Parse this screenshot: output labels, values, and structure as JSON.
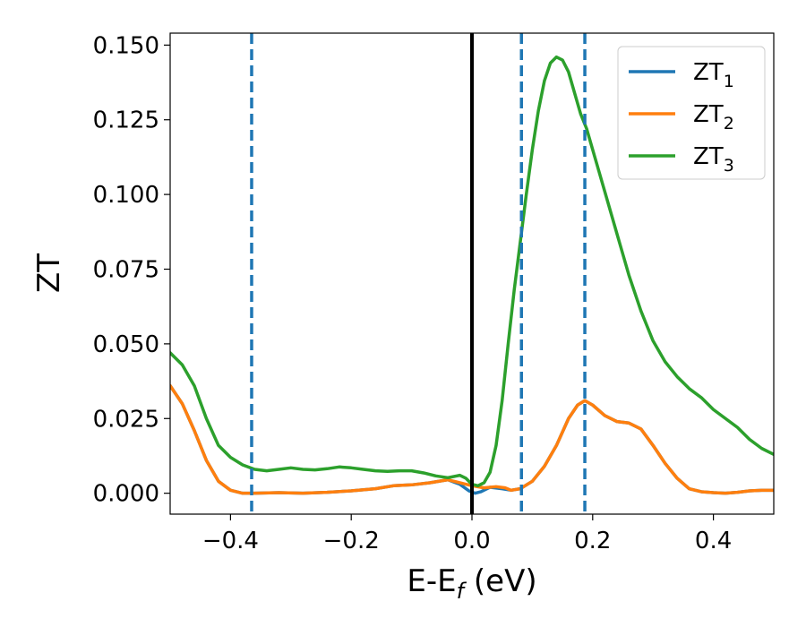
{
  "chart_data": {
    "type": "line",
    "title": "",
    "xlabel": {
      "base": "E-E",
      "sub": "f",
      "unit": " (eV)"
    },
    "ylabel": "ZT",
    "xlim": [
      -0.5,
      0.5
    ],
    "ylim": [
      -0.007,
      0.154
    ],
    "x_ticks": [
      -0.4,
      -0.2,
      0.0,
      0.2,
      0.4
    ],
    "x_tick_labels": [
      "−0.4",
      "−0.2",
      "0.0",
      "0.2",
      "0.4"
    ],
    "y_ticks": [
      0.0,
      0.025,
      0.05,
      0.075,
      0.1,
      0.125,
      0.15
    ],
    "y_tick_labels": [
      "0.000",
      "0.025",
      "0.050",
      "0.075",
      "0.100",
      "0.125",
      "0.150"
    ],
    "grid": false,
    "legend_position": "top-right",
    "vertical_lines": [
      {
        "x": -0.365,
        "style": "dashed",
        "color": "#1f77b4"
      },
      {
        "x": 0.0,
        "style": "solid",
        "color": "#000000"
      },
      {
        "x": 0.082,
        "style": "dashed",
        "color": "#1f77b4"
      },
      {
        "x": 0.187,
        "style": "dashed",
        "color": "#1f77b4"
      }
    ],
    "series": [
      {
        "name": "ZT",
        "name_sub": "1",
        "color": "#1f77b4",
        "points": [
          [
            -0.5,
            0.036
          ],
          [
            -0.48,
            0.03
          ],
          [
            -0.46,
            0.021
          ],
          [
            -0.44,
            0.011
          ],
          [
            -0.42,
            0.004
          ],
          [
            -0.4,
            0.001
          ],
          [
            -0.38,
            0.0
          ],
          [
            -0.36,
            0.0
          ],
          [
            -0.32,
            0.0002
          ],
          [
            -0.28,
            0.0
          ],
          [
            -0.24,
            0.0003
          ],
          [
            -0.2,
            0.0008
          ],
          [
            -0.16,
            0.0015
          ],
          [
            -0.13,
            0.0025
          ],
          [
            -0.1,
            0.0028
          ],
          [
            -0.07,
            0.0035
          ],
          [
            -0.04,
            0.0045
          ],
          [
            -0.02,
            0.003
          ],
          [
            -0.005,
            0.0008
          ],
          [
            0.005,
            0.0
          ],
          [
            0.015,
            0.0005
          ],
          [
            0.03,
            0.002
          ],
          [
            0.05,
            0.0015
          ],
          [
            0.065,
            0.001
          ],
          [
            0.08,
            0.0015
          ],
          [
            0.1,
            0.004
          ],
          [
            0.12,
            0.009
          ],
          [
            0.14,
            0.016
          ],
          [
            0.16,
            0.025
          ],
          [
            0.175,
            0.0295
          ],
          [
            0.187,
            0.031
          ],
          [
            0.2,
            0.0295
          ],
          [
            0.22,
            0.026
          ],
          [
            0.24,
            0.024
          ],
          [
            0.26,
            0.0235
          ],
          [
            0.28,
            0.0215
          ],
          [
            0.3,
            0.016
          ],
          [
            0.32,
            0.01
          ],
          [
            0.34,
            0.005
          ],
          [
            0.36,
            0.0015
          ],
          [
            0.38,
            0.0005
          ],
          [
            0.4,
            0.0002
          ],
          [
            0.42,
            0.0
          ],
          [
            0.44,
            0.0003
          ],
          [
            0.46,
            0.0008
          ],
          [
            0.48,
            0.001
          ],
          [
            0.5,
            0.001
          ]
        ]
      },
      {
        "name": "ZT",
        "name_sub": "2",
        "color": "#ff7f0e",
        "points": [
          [
            -0.5,
            0.036
          ],
          [
            -0.48,
            0.03
          ],
          [
            -0.46,
            0.021
          ],
          [
            -0.44,
            0.011
          ],
          [
            -0.42,
            0.004
          ],
          [
            -0.4,
            0.001
          ],
          [
            -0.38,
            0.0
          ],
          [
            -0.36,
            0.0
          ],
          [
            -0.32,
            0.0002
          ],
          [
            -0.28,
            0.0
          ],
          [
            -0.24,
            0.0003
          ],
          [
            -0.2,
            0.0008
          ],
          [
            -0.16,
            0.0015
          ],
          [
            -0.13,
            0.0025
          ],
          [
            -0.1,
            0.0028
          ],
          [
            -0.07,
            0.0035
          ],
          [
            -0.04,
            0.0045
          ],
          [
            -0.02,
            0.0035
          ],
          [
            0.0,
            0.0025
          ],
          [
            0.02,
            0.0018
          ],
          [
            0.04,
            0.0022
          ],
          [
            0.055,
            0.0018
          ],
          [
            0.065,
            0.001
          ],
          [
            0.08,
            0.0015
          ],
          [
            0.1,
            0.004
          ],
          [
            0.12,
            0.009
          ],
          [
            0.14,
            0.016
          ],
          [
            0.16,
            0.025
          ],
          [
            0.175,
            0.0295
          ],
          [
            0.187,
            0.031
          ],
          [
            0.2,
            0.0295
          ],
          [
            0.22,
            0.026
          ],
          [
            0.24,
            0.024
          ],
          [
            0.26,
            0.0235
          ],
          [
            0.28,
            0.0215
          ],
          [
            0.3,
            0.016
          ],
          [
            0.32,
            0.01
          ],
          [
            0.34,
            0.005
          ],
          [
            0.36,
            0.0015
          ],
          [
            0.38,
            0.0005
          ],
          [
            0.4,
            0.0002
          ],
          [
            0.42,
            0.0
          ],
          [
            0.44,
            0.0003
          ],
          [
            0.46,
            0.0008
          ],
          [
            0.48,
            0.001
          ],
          [
            0.5,
            0.001
          ]
        ]
      },
      {
        "name": "ZT",
        "name_sub": "3",
        "color": "#2ca02c",
        "points": [
          [
            -0.5,
            0.047
          ],
          [
            -0.48,
            0.043
          ],
          [
            -0.46,
            0.036
          ],
          [
            -0.44,
            0.025
          ],
          [
            -0.42,
            0.016
          ],
          [
            -0.4,
            0.012
          ],
          [
            -0.38,
            0.0095
          ],
          [
            -0.36,
            0.008
          ],
          [
            -0.34,
            0.0075
          ],
          [
            -0.32,
            0.008
          ],
          [
            -0.3,
            0.0085
          ],
          [
            -0.28,
            0.008
          ],
          [
            -0.26,
            0.0078
          ],
          [
            -0.24,
            0.0082
          ],
          [
            -0.22,
            0.0088
          ],
          [
            -0.2,
            0.0085
          ],
          [
            -0.18,
            0.008
          ],
          [
            -0.16,
            0.0075
          ],
          [
            -0.14,
            0.0073
          ],
          [
            -0.12,
            0.0075
          ],
          [
            -0.1,
            0.0075
          ],
          [
            -0.08,
            0.0068
          ],
          [
            -0.06,
            0.0058
          ],
          [
            -0.04,
            0.0052
          ],
          [
            -0.02,
            0.006
          ],
          [
            -0.01,
            0.005
          ],
          [
            0.0,
            0.003
          ],
          [
            0.01,
            0.0025
          ],
          [
            0.02,
            0.0035
          ],
          [
            0.03,
            0.007
          ],
          [
            0.04,
            0.016
          ],
          [
            0.05,
            0.031
          ],
          [
            0.06,
            0.05
          ],
          [
            0.07,
            0.068
          ],
          [
            0.08,
            0.084
          ],
          [
            0.09,
            0.1
          ],
          [
            0.1,
            0.115
          ],
          [
            0.11,
            0.128
          ],
          [
            0.12,
            0.138
          ],
          [
            0.13,
            0.144
          ],
          [
            0.14,
            0.146
          ],
          [
            0.15,
            0.145
          ],
          [
            0.16,
            0.141
          ],
          [
            0.17,
            0.134
          ],
          [
            0.18,
            0.127
          ],
          [
            0.19,
            0.122
          ],
          [
            0.2,
            0.115
          ],
          [
            0.21,
            0.108
          ],
          [
            0.22,
            0.101
          ],
          [
            0.23,
            0.094
          ],
          [
            0.24,
            0.087
          ],
          [
            0.25,
            0.08
          ],
          [
            0.26,
            0.073
          ],
          [
            0.27,
            0.067
          ],
          [
            0.28,
            0.061
          ],
          [
            0.29,
            0.056
          ],
          [
            0.3,
            0.051
          ],
          [
            0.32,
            0.044
          ],
          [
            0.34,
            0.039
          ],
          [
            0.36,
            0.035
          ],
          [
            0.38,
            0.032
          ],
          [
            0.4,
            0.028
          ],
          [
            0.42,
            0.025
          ],
          [
            0.44,
            0.022
          ],
          [
            0.46,
            0.018
          ],
          [
            0.48,
            0.015
          ],
          [
            0.5,
            0.013
          ]
        ]
      }
    ]
  }
}
